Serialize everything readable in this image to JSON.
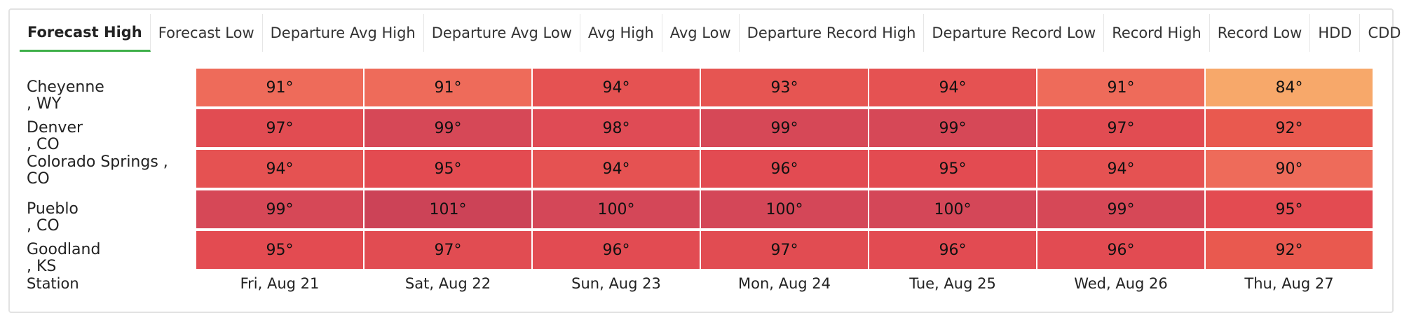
{
  "tabs": [
    "Forecast High",
    "Forecast Low",
    "Departure Avg High",
    "Departure Avg Low",
    "Avg High",
    "Avg Low",
    "Departure Record High",
    "Departure Record Low",
    "Record High",
    "Record Low",
    "HDD",
    "CDD"
  ],
  "active_tab": "Forecast High",
  "table": {
    "station_header": "Station",
    "days": [
      "Fri, Aug 21",
      "Sat, Aug 22",
      "Sun, Aug 23",
      "Mon, Aug 24",
      "Tue, Aug 25",
      "Wed, Aug 26",
      "Thu, Aug 27"
    ],
    "rows": [
      {
        "station": "Cheyenne , WY",
        "temps": [
          "91°",
          "91°",
          "94°",
          "93°",
          "94°",
          "91°",
          "84°"
        ]
      },
      {
        "station": "Denver , CO",
        "temps": [
          "97°",
          "99°",
          "98°",
          "99°",
          "99°",
          "97°",
          "92°"
        ]
      },
      {
        "station": "Colorado Springs , CO",
        "temps": [
          "94°",
          "95°",
          "94°",
          "96°",
          "95°",
          "94°",
          "90°"
        ]
      },
      {
        "station": "Pueblo , CO",
        "temps": [
          "99°",
          "101°",
          "100°",
          "100°",
          "100°",
          "99°",
          "95°"
        ]
      },
      {
        "station": "Goodland , KS",
        "temps": [
          "95°",
          "97°",
          "96°",
          "97°",
          "96°",
          "96°",
          "92°"
        ]
      }
    ]
  },
  "colors": {
    "active_tab_underline": "#3fb04a",
    "temp_84": "#f7a86a",
    "temp_90": "#ee6b5a",
    "temp_91": "#ee6b5a",
    "temp_92": "#e9594f",
    "temp_93": "#e65552",
    "temp_94": "#e55252",
    "temp_95": "#e34b51",
    "temp_96": "#e24b52",
    "temp_97": "#e14c52",
    "temp_98": "#df4b55",
    "temp_99": "#d64857",
    "temp_100": "#d44758",
    "temp_101": "#cc4357"
  }
}
